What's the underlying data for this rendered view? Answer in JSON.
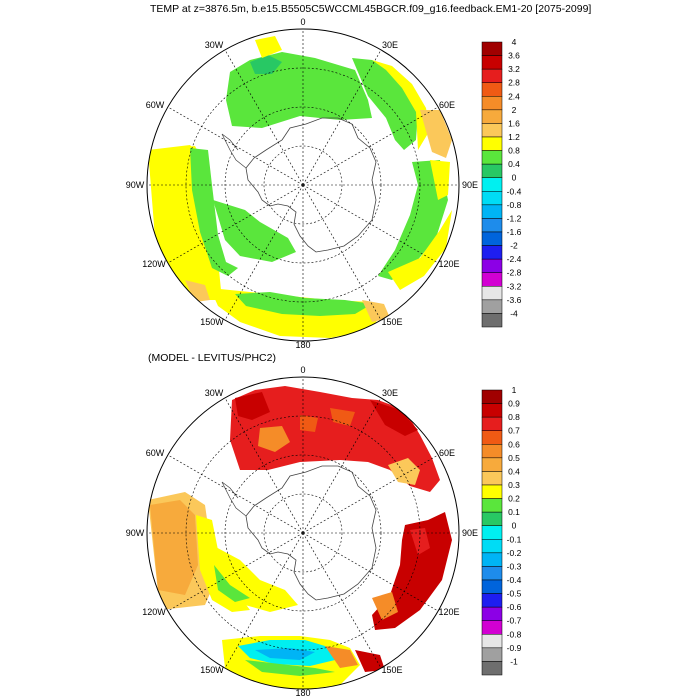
{
  "panels": [
    {
      "title": "TEMP at z=3876.5m, b.e15.B5505C5WCCML45BGCR.f09_g16.feedback.EM1-20 [2075-2099]",
      "lon_labels": {
        "0": "0",
        "30E": "30E",
        "60E": "60E",
        "90E": "90E",
        "120E": "120E",
        "150E": "150E",
        "180": "180",
        "150W": "150W",
        "120W": "120W",
        "90W": "90W",
        "60W": "60W",
        "30W": "30W"
      },
      "colorbar": {
        "labels": [
          "4",
          "3.6",
          "3.2",
          "2.8",
          "2.4",
          "2",
          "1.6",
          "1.2",
          "0.8",
          "0.4",
          "0",
          "-0.4",
          "-0.8",
          "-1.2",
          "-1.6",
          "-2",
          "-2.4",
          "-2.8",
          "-3.2",
          "-3.6",
          "-4"
        ],
        "colors": [
          "#a00000",
          "#c80000",
          "#e61e1e",
          "#f05a14",
          "#f58c28",
          "#f7aa3c",
          "#fbc85a",
          "#ffff00",
          "#5ae63c",
          "#28c864",
          "#00f0f0",
          "#00dcf5",
          "#00b4f5",
          "#1e8ceb",
          "#0064dc",
          "#1e1ef0",
          "#8c00e6",
          "#d200d2",
          "#e6e6e6",
          "#a0a0a0",
          "#6e6e6e"
        ]
      }
    },
    {
      "title": "(MODEL - LEVITUS/PHC2)",
      "lon_labels": {
        "0": "0",
        "30E": "30E",
        "60E": "60E",
        "90E": "90E",
        "120E": "120E",
        "150E": "150E",
        "180": "180",
        "150W": "150W",
        "120W": "120W",
        "90W": "90W",
        "60W": "60W",
        "30W": "30W"
      },
      "colorbar": {
        "labels": [
          "1",
          "0.9",
          "0.8",
          "0.7",
          "0.6",
          "0.5",
          "0.4",
          "0.3",
          "0.2",
          "0.1",
          "0",
          "-0.1",
          "-0.2",
          "-0.3",
          "-0.4",
          "-0.5",
          "-0.6",
          "-0.7",
          "-0.8",
          "-0.9",
          "-1"
        ],
        "colors": [
          "#a00000",
          "#c80000",
          "#e61e1e",
          "#f05a14",
          "#f58c28",
          "#f7aa3c",
          "#fbc85a",
          "#ffff00",
          "#5ae63c",
          "#28c864",
          "#00f0f0",
          "#00dcf5",
          "#00b4f5",
          "#1e8ceb",
          "#0064dc",
          "#1e1ef0",
          "#8c00e6",
          "#d200d2",
          "#e6e6e6",
          "#a0a0a0",
          "#6e6e6e"
        ]
      }
    }
  ]
}
